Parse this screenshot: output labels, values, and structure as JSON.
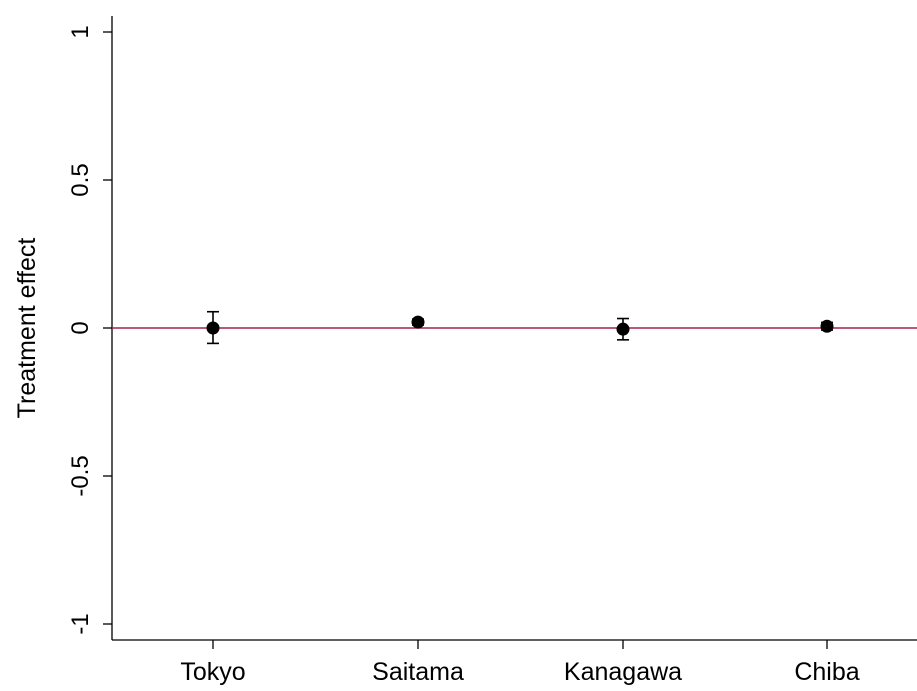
{
  "chart_data": {
    "type": "scatter",
    "title": "",
    "xlabel": "",
    "ylabel": "Treatment effect",
    "categories": [
      "Tokyo",
      "Saitama",
      "Kanagawa",
      "Chiba"
    ],
    "series": [
      {
        "estimates": [
          0.0,
          0.02,
          -0.004,
          0.006
        ],
        "ci_lower": [
          -0.052,
          0.01,
          -0.04,
          -0.007
        ],
        "ci_upper": [
          0.055,
          0.03,
          0.032,
          0.019
        ]
      }
    ],
    "yticks": [
      1,
      0.5,
      0,
      -0.5,
      -1
    ],
    "ytick_labels": [
      "1",
      "0.5",
      "0",
      "-0.5",
      "-1"
    ],
    "ylim": [
      -1.05,
      1.05
    ],
    "reference_line": {
      "y": 0,
      "color": "#a3214a"
    },
    "marker_color": "#000000",
    "grid": false,
    "legend": "none"
  }
}
